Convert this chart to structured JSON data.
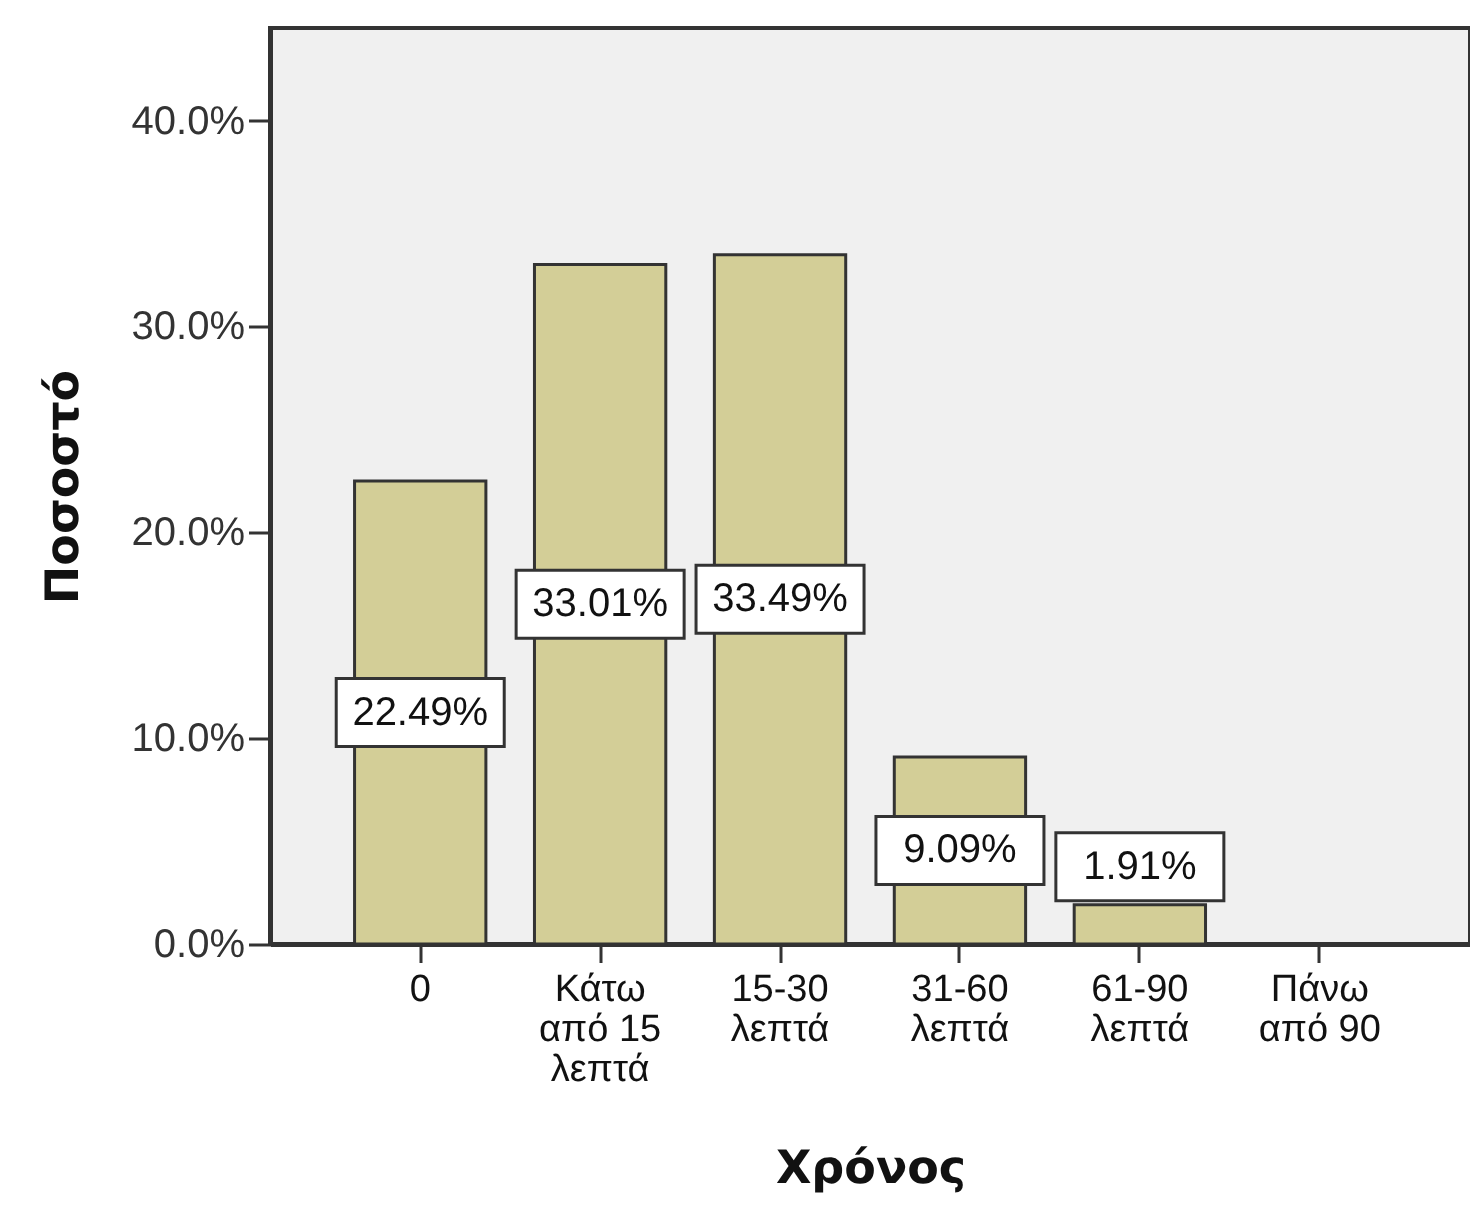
{
  "chart_data": {
    "type": "bar",
    "xlabel": "Χρόνος",
    "ylabel": "Ποσοστό",
    "categories": [
      "0",
      "Κάτω από 15 λεπτά",
      "15-30 λεπτά",
      "31-60 λεπτά",
      "61-90 λεπτά",
      "Πάνω από 90"
    ],
    "values": [
      22.49,
      33.01,
      33.49,
      9.09,
      1.91,
      null
    ],
    "color": "#d3ce97",
    "value_labels": [
      "22.49%",
      "33.01%",
      "33.49%",
      "9.09%",
      "1.91%",
      null
    ],
    "ylim": [
      0,
      44.5
    ],
    "yticks": [
      {
        "value": 0,
        "label": "0.0%"
      },
      {
        "value": 10,
        "label": "10.0%"
      },
      {
        "value": 20,
        "label": "20.0%"
      },
      {
        "value": 30,
        "label": "30.0%"
      },
      {
        "value": 40,
        "label": "40.0%"
      }
    ]
  }
}
